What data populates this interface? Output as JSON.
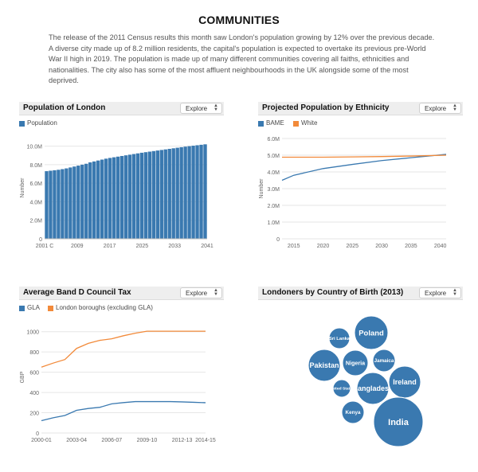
{
  "page": {
    "title": "COMMUNITIES",
    "intro": "The release of the 2011 Census results this month saw London's population growing by 12% over the previous decade. A diverse city made up of 8.2 million residents, the capital's population is expected to overtake its previous pre-World War II high in 2019. The population is made up of many different communities covering all faiths, ethnicities and nationalities. The city also has some of the most affluent neighbourhoods in the UK alongside some of the most deprived."
  },
  "colors": {
    "blue": "#3a79b0",
    "orange": "#f28a3a",
    "grid": "#e6e6e6",
    "axis_text": "#666666"
  },
  "panels": {
    "population": {
      "title": "Population of London",
      "explore_label": "Explore",
      "legend": [
        "Population"
      ]
    },
    "ethnicity": {
      "title": "Projected Population by Ethnicity",
      "explore_label": "Explore",
      "legend": [
        "BAME",
        "White"
      ]
    },
    "council_tax": {
      "title": "Average Band D Council Tax",
      "explore_label": "Explore",
      "legend": [
        "GLA",
        "London boroughs (excluding GLA)"
      ]
    },
    "birth": {
      "title": "Londoners by Country of Birth (2013)",
      "explore_label": "Explore"
    }
  },
  "chart_data": [
    {
      "type": "bar",
      "title": "Population of London",
      "ylabel": "Number",
      "ylim": [
        0,
        11000000
      ],
      "yticks": [
        0,
        2000000,
        4000000,
        6000000,
        8000000,
        10000000
      ],
      "ytick_labels": [
        "0",
        "2.0M",
        "4.0M",
        "6.0M",
        "8.0M",
        "10.0M"
      ],
      "xtick_labels": [
        "2001 C",
        "2009",
        "2017",
        "2025",
        "2033",
        "2041"
      ],
      "series": [
        {
          "name": "Population",
          "values": [
            7300000,
            7350000,
            7400000,
            7450000,
            7520000,
            7600000,
            7700000,
            7800000,
            7900000,
            8000000,
            8100000,
            8250000,
            8350000,
            8450000,
            8550000,
            8650000,
            8730000,
            8800000,
            8870000,
            8940000,
            9010000,
            9080000,
            9150000,
            9220000,
            9290000,
            9350000,
            9410000,
            9470000,
            9530000,
            9590000,
            9650000,
            9710000,
            9770000,
            9830000,
            9890000,
            9950000,
            10000000,
            10050000,
            10100000,
            10150000,
            10200000
          ]
        }
      ],
      "grid": true
    },
    {
      "type": "line",
      "title": "Projected Population by Ethnicity",
      "ylabel": "Number",
      "ylim": [
        0,
        6000000
      ],
      "xlim": [
        2013,
        2041
      ],
      "yticks": [
        0,
        1000000,
        2000000,
        3000000,
        4000000,
        5000000,
        6000000
      ],
      "ytick_labels": [
        "0",
        "1.0M",
        "2.0M",
        "3.0M",
        "4.0M",
        "5.0M",
        "6.0M"
      ],
      "xticks": [
        2015,
        2020,
        2025,
        2030,
        2035,
        2040
      ],
      "series": [
        {
          "name": "BAME",
          "x": [
            2011,
            2015,
            2020,
            2025,
            2030,
            2035,
            2041
          ],
          "values": [
            3500000,
            3800000,
            4200000,
            4450000,
            4680000,
            4850000,
            5050000
          ]
        },
        {
          "name": "White",
          "x": [
            2011,
            2015,
            2020,
            2025,
            2030,
            2035,
            2041
          ],
          "values": [
            4880000,
            4880000,
            4880000,
            4900000,
            4920000,
            4950000,
            5000000
          ]
        }
      ],
      "grid": true
    },
    {
      "type": "line",
      "title": "Average Band D Council Tax",
      "ylabel": "GBP",
      "ylim": [
        0,
        1100
      ],
      "yticks": [
        0,
        200,
        400,
        600,
        800,
        1000
      ],
      "categories": [
        "2000-01",
        "2001-02",
        "2002-03",
        "2003-04",
        "2004-05",
        "2005-06",
        "2006-07",
        "2007-08",
        "2008-09",
        "2009-10",
        "2010-11",
        "2011-12",
        "2012-13",
        "2013-14",
        "2014-15"
      ],
      "xtick_labels": [
        "2000-01",
        "2003-04",
        "2006-07",
        "2009-10",
        "2012-13",
        "2014-15"
      ],
      "xtick_index": [
        0,
        3,
        6,
        9,
        12,
        14
      ],
      "series": [
        {
          "name": "GLA",
          "values": [
            122,
            150,
            173,
            224,
            242,
            254,
            288,
            300,
            310,
            310,
            310,
            310,
            307,
            303,
            299
          ]
        },
        {
          "name": "London boroughs (excluding GLA)",
          "values": [
            650,
            690,
            725,
            835,
            885,
            915,
            930,
            960,
            985,
            1005,
            1005,
            1005,
            1005,
            1005,
            1005
          ]
        }
      ],
      "grid": true
    }
  ],
  "bubbles": [
    {
      "label": "Poland",
      "size": 1.0
    },
    {
      "label": "Sri Lanka",
      "size": 0.6
    },
    {
      "label": "Pakistan",
      "size": 0.9
    },
    {
      "label": "Nigeria",
      "size": 0.75
    },
    {
      "label": "Jamaica",
      "size": 0.62
    },
    {
      "label": "United States",
      "size": 0.48
    },
    {
      "label": "Bangladesh",
      "size": 0.95
    },
    {
      "label": "Ireland",
      "size": 0.92
    },
    {
      "label": "Kenya",
      "size": 0.6
    },
    {
      "label": "India",
      "size": 1.6
    }
  ]
}
